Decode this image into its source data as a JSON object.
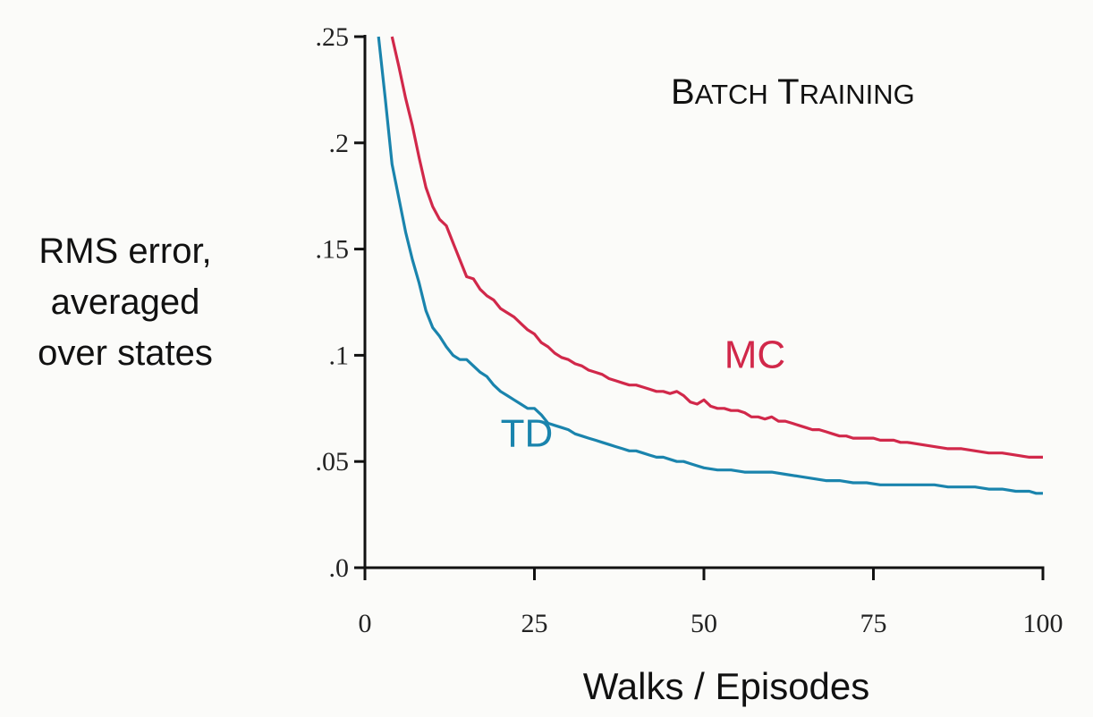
{
  "chart_data": {
    "type": "line",
    "title": "Batch Training",
    "xlabel": "Walks / Episodes",
    "ylabel_lines": [
      "RMS error,",
      "averaged",
      "over states"
    ],
    "xlim": [
      0,
      100
    ],
    "ylim": [
      0,
      0.25
    ],
    "xticks": [
      0,
      25,
      50,
      75,
      100
    ],
    "xtick_labels": [
      "0",
      "25",
      "50",
      "75",
      "100"
    ],
    "yticks": [
      0,
      0.05,
      0.1,
      0.15,
      0.2,
      0.25
    ],
    "ytick_labels": [
      ".0",
      ".05",
      ".1",
      ".15",
      ".2",
      ".25"
    ],
    "grid": false,
    "colors": {
      "MC": "#d1284a",
      "TD": "#1a84ad",
      "axis": "#111111"
    },
    "series": [
      {
        "name": "MC",
        "x": [
          4,
          5,
          6,
          7,
          8,
          9,
          10,
          11,
          12,
          13,
          14,
          15,
          16,
          17,
          18,
          19,
          20,
          21,
          22,
          23,
          24,
          25,
          26,
          27,
          28,
          29,
          30,
          31,
          32,
          33,
          34,
          35,
          36,
          37,
          38,
          39,
          40,
          41,
          42,
          43,
          44,
          45,
          46,
          47,
          48,
          49,
          50,
          51,
          52,
          53,
          54,
          55,
          56,
          57,
          58,
          59,
          60,
          61,
          62,
          63,
          64,
          65,
          66,
          67,
          68,
          69,
          70,
          71,
          72,
          73,
          74,
          75,
          76,
          77,
          78,
          79,
          80,
          82,
          84,
          86,
          88,
          90,
          92,
          94,
          96,
          98,
          100
        ],
        "values": [
          0.25,
          0.236,
          0.221,
          0.208,
          0.193,
          0.179,
          0.17,
          0.164,
          0.161,
          0.153,
          0.145,
          0.137,
          0.136,
          0.131,
          0.128,
          0.126,
          0.122,
          0.12,
          0.118,
          0.115,
          0.112,
          0.11,
          0.106,
          0.104,
          0.101,
          0.099,
          0.098,
          0.096,
          0.095,
          0.093,
          0.092,
          0.091,
          0.089,
          0.088,
          0.087,
          0.086,
          0.086,
          0.085,
          0.084,
          0.083,
          0.083,
          0.082,
          0.083,
          0.081,
          0.078,
          0.077,
          0.079,
          0.076,
          0.075,
          0.075,
          0.074,
          0.074,
          0.073,
          0.071,
          0.071,
          0.07,
          0.071,
          0.069,
          0.069,
          0.068,
          0.067,
          0.066,
          0.065,
          0.065,
          0.064,
          0.063,
          0.062,
          0.062,
          0.061,
          0.061,
          0.061,
          0.061,
          0.06,
          0.06,
          0.06,
          0.059,
          0.059,
          0.058,
          0.057,
          0.056,
          0.056,
          0.055,
          0.054,
          0.054,
          0.053,
          0.052,
          0.052
        ]
      },
      {
        "name": "TD",
        "x": [
          2,
          3,
          4,
          5,
          6,
          7,
          8,
          9,
          10,
          11,
          12,
          13,
          14,
          15,
          16,
          17,
          18,
          19,
          20,
          21,
          22,
          23,
          24,
          25,
          26,
          27,
          28,
          29,
          30,
          31,
          32,
          33,
          34,
          35,
          36,
          37,
          38,
          39,
          40,
          41,
          42,
          43,
          44,
          45,
          46,
          47,
          48,
          49,
          50,
          52,
          54,
          56,
          58,
          60,
          62,
          64,
          66,
          68,
          70,
          72,
          74,
          76,
          78,
          80,
          82,
          84,
          86,
          88,
          90,
          92,
          94,
          96,
          98,
          99,
          100
        ],
        "values": [
          0.25,
          0.221,
          0.19,
          0.174,
          0.158,
          0.145,
          0.134,
          0.121,
          0.113,
          0.109,
          0.104,
          0.1,
          0.098,
          0.098,
          0.095,
          0.092,
          0.09,
          0.086,
          0.083,
          0.081,
          0.079,
          0.077,
          0.075,
          0.075,
          0.072,
          0.068,
          0.067,
          0.066,
          0.065,
          0.063,
          0.062,
          0.061,
          0.06,
          0.059,
          0.058,
          0.057,
          0.056,
          0.055,
          0.055,
          0.054,
          0.053,
          0.052,
          0.052,
          0.051,
          0.05,
          0.05,
          0.049,
          0.048,
          0.047,
          0.046,
          0.046,
          0.045,
          0.045,
          0.045,
          0.044,
          0.043,
          0.042,
          0.041,
          0.041,
          0.04,
          0.04,
          0.039,
          0.039,
          0.039,
          0.039,
          0.039,
          0.038,
          0.038,
          0.038,
          0.037,
          0.037,
          0.036,
          0.036,
          0.035,
          0.035
        ]
      }
    ],
    "series_labels": [
      {
        "name": "MC",
        "text": "MC",
        "x": 53,
        "y": 0.094
      },
      {
        "name": "TD",
        "text": "TD",
        "x": 20,
        "y": 0.057
      }
    ]
  }
}
